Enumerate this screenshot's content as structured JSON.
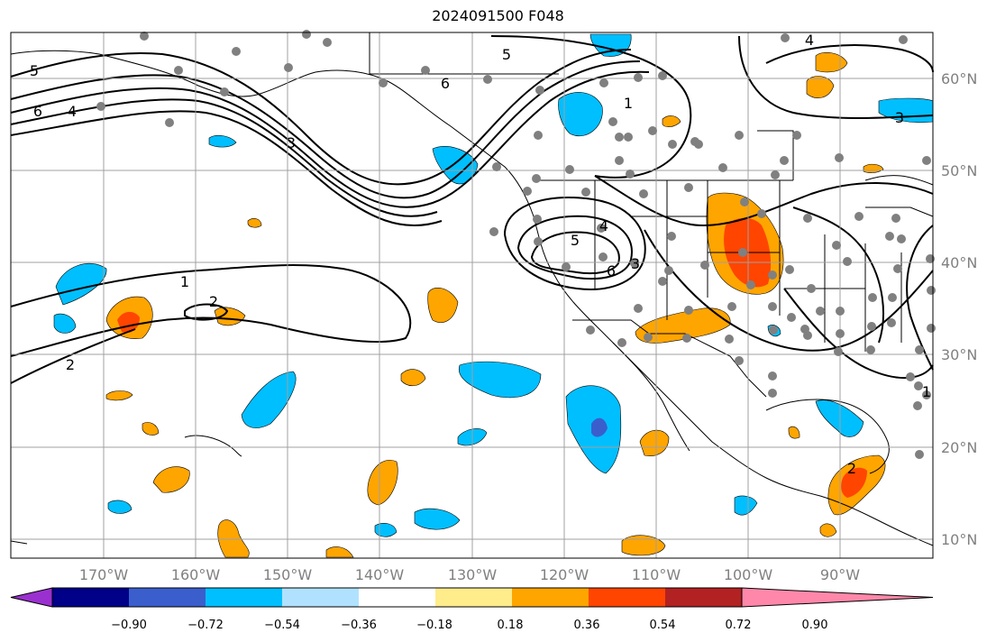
{
  "title": "2024091500 F048",
  "lat_labels": [
    "60°N",
    "50°N",
    "40°N",
    "30°N",
    "20°N",
    "10°N"
  ],
  "lon_labels": [
    "170°W",
    "160°W",
    "150°W",
    "140°W",
    "130°W",
    "120°W",
    "110°W",
    "100°W",
    "90°W"
  ],
  "colorbar": {
    "tick_labels": [
      "−0.90",
      "−0.72",
      "−0.54",
      "−0.36",
      "−0.18",
      "0.18",
      "0.36",
      "0.54",
      "0.72",
      "0.90"
    ],
    "colors": [
      "#9b30d0",
      "#000088",
      "#3a5fcd",
      "#00bfff",
      "#b0e2ff",
      "#ffffff",
      "#ffec8b",
      "#ffa500",
      "#ff4500",
      "#b22222",
      "#ff88aa"
    ]
  },
  "contour_labels": [
    "5",
    "6",
    "4",
    "3",
    "5",
    "6",
    "1",
    "2",
    "1",
    "2",
    "5",
    "4",
    "6",
    "3",
    "4",
    "3",
    "1",
    "2"
  ],
  "colors": {
    "contour": "#000000",
    "station_dot": "#808080",
    "grid": "#a0a0a0",
    "coast": "#000000"
  }
}
